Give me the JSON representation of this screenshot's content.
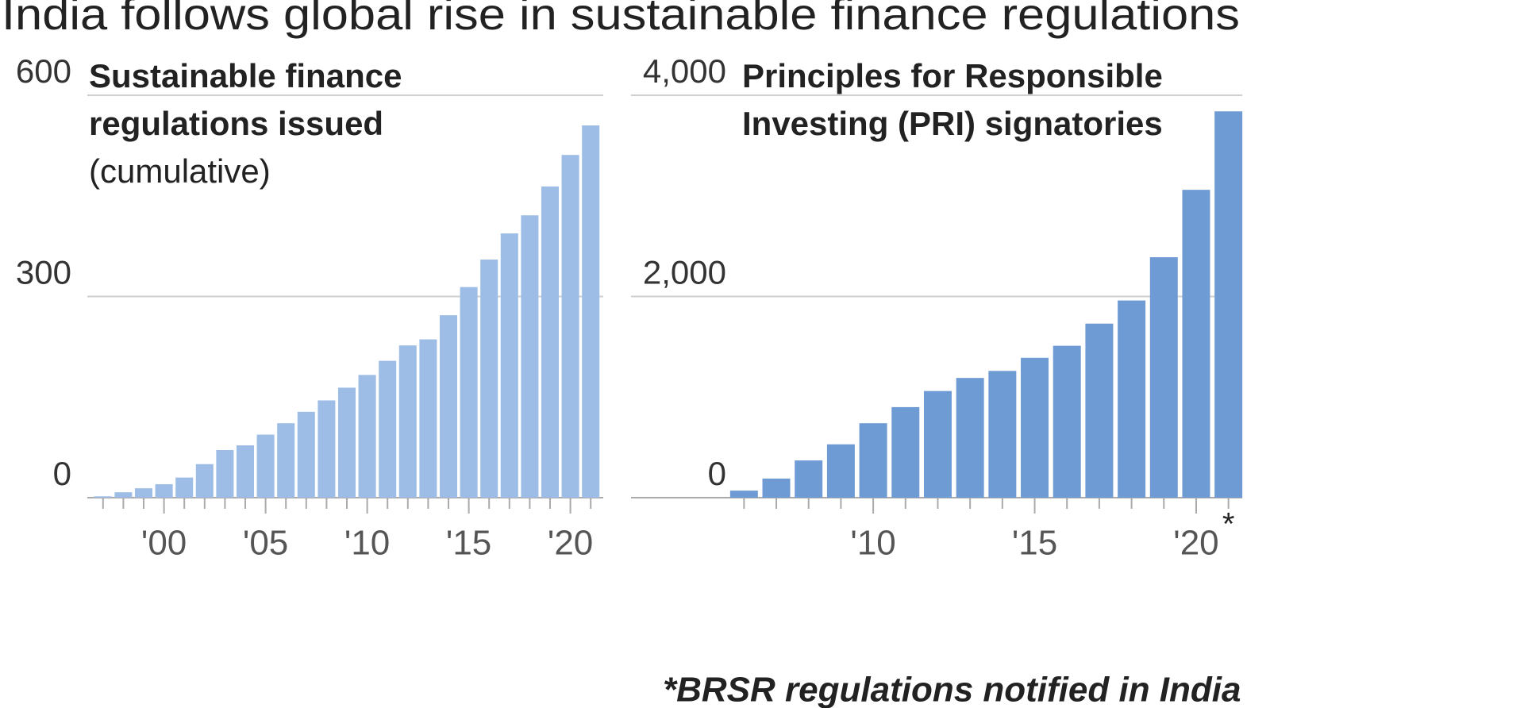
{
  "title": "India follows global rise in sustainable finance regulations",
  "footnote": "*BRSR regulations notified in India",
  "chart_data": [
    {
      "type": "bar",
      "title": "Sustainable finance regulations issued",
      "subtitle": "(cumulative)",
      "categories": [
        null,
        null,
        null,
        "'00",
        null,
        null,
        null,
        null,
        "'05",
        null,
        null,
        null,
        null,
        "'10",
        null,
        null,
        null,
        null,
        "'15",
        null,
        null,
        null,
        null,
        "'20",
        null
      ],
      "values": [
        2,
        8,
        14,
        20,
        30,
        50,
        71,
        78,
        94,
        111,
        128,
        145,
        164,
        183,
        204,
        227,
        236,
        272,
        314,
        355,
        394,
        421,
        464,
        511,
        555
      ],
      "color": "#9dbde6",
      "ylim": [
        0,
        600
      ],
      "yticks": [
        0,
        300,
        600
      ],
      "grid": true
    },
    {
      "type": "bar",
      "title": "Principles for Responsible Investing (PRI) signatories",
      "categories": [
        null,
        null,
        null,
        null,
        "'10",
        null,
        null,
        null,
        null,
        "'15",
        null,
        null,
        null,
        null,
        "'20",
        null
      ],
      "values": [
        70,
        190,
        370,
        530,
        740,
        900,
        1060,
        1190,
        1260,
        1390,
        1510,
        1730,
        1960,
        2390,
        3060,
        3840
      ],
      "color": "#6f9bd5",
      "ylim": [
        0,
        4000
      ],
      "yticks": [
        0,
        {
          "value": 2000,
          "label": "2,000"
        },
        {
          "value": 4000,
          "label": "4,000"
        }
      ],
      "grid": true,
      "annotation": "*"
    }
  ]
}
